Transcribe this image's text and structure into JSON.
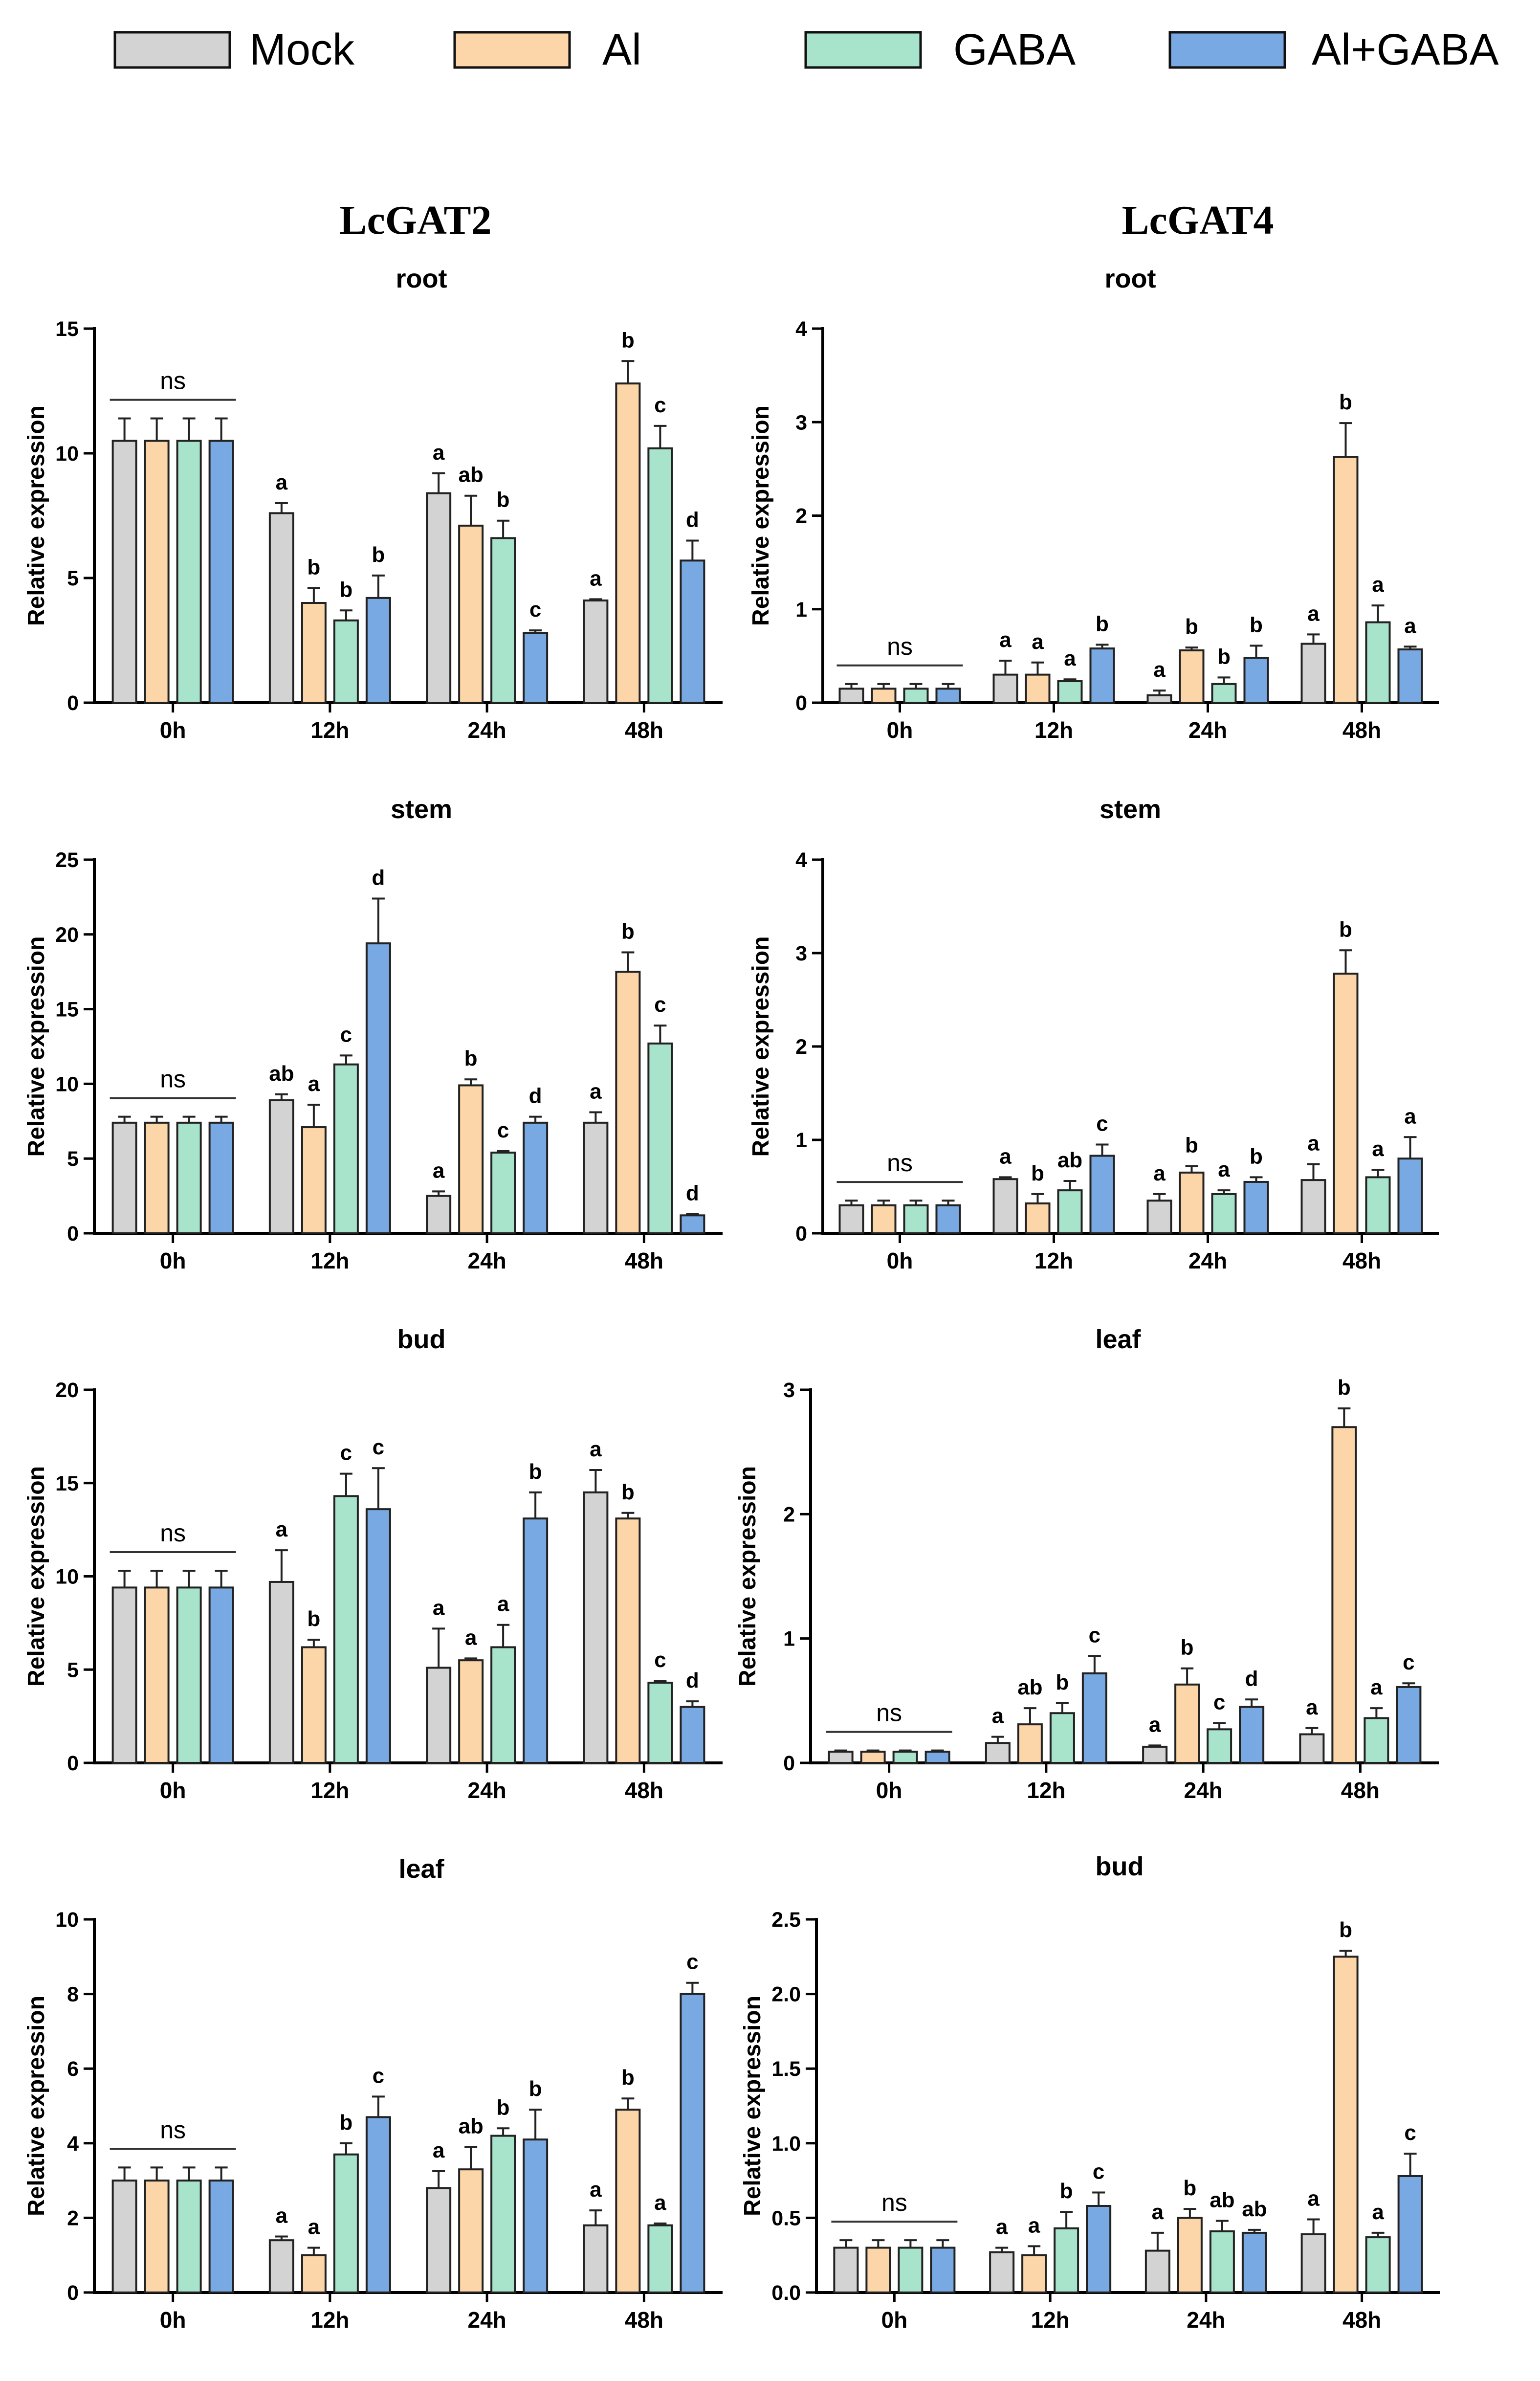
{
  "legend": {
    "items": [
      {
        "label": "Mock",
        "color": "#d3d3d3"
      },
      {
        "label": "Al",
        "color": "#fcd5a8"
      },
      {
        "label": "GABA",
        "color": "#a8e4cc"
      },
      {
        "label": "Al+GABA",
        "color": "#79a9e2"
      }
    ]
  },
  "columns": [
    {
      "title": "LcGAT2"
    },
    {
      "title": "LcGAT4"
    }
  ],
  "chart_data": [
    {
      "type": "bar",
      "gene": "LcGAT2",
      "title": "root",
      "ylabel": "Relative expression",
      "xlabel": "",
      "categories": [
        "0h",
        "12h",
        "24h",
        "48h"
      ],
      "ylim": [
        0,
        15
      ],
      "yticks": [
        "0",
        "5",
        "10",
        "15"
      ],
      "series": [
        {
          "name": "Mock",
          "values": [
            10.5,
            7.6,
            8.4,
            4.1
          ],
          "errors": [
            0.9,
            0.4,
            0.8,
            0.05
          ]
        },
        {
          "name": "Al",
          "values": [
            10.5,
            4.0,
            7.1,
            12.8
          ],
          "errors": [
            0.9,
            0.6,
            1.2,
            0.9
          ]
        },
        {
          "name": "GABA",
          "values": [
            10.5,
            3.3,
            6.6,
            10.2
          ],
          "errors": [
            0.9,
            0.4,
            0.7,
            0.9
          ]
        },
        {
          "name": "Al+GABA",
          "values": [
            10.5,
            4.2,
            2.8,
            5.7
          ],
          "errors": [
            0.9,
            0.9,
            0.1,
            0.8
          ]
        }
      ],
      "labels": [
        [
          "",
          "",
          "",
          ""
        ],
        [
          "a",
          "b",
          "b",
          "b"
        ],
        [
          "a",
          "ab",
          "b",
          "c"
        ],
        [
          "a",
          "b",
          "c",
          "d"
        ]
      ],
      "ns": "ns"
    },
    {
      "type": "bar",
      "gene": "LcGAT4",
      "title": "root",
      "ylabel": "Relative expression",
      "xlabel": "",
      "categories": [
        "0h",
        "12h",
        "24h",
        "48h"
      ],
      "ylim": [
        0,
        4
      ],
      "yticks": [
        "0",
        "1",
        "2",
        "3",
        "4"
      ],
      "series": [
        {
          "name": "Mock",
          "values": [
            0.15,
            0.3,
            0.08,
            0.63
          ],
          "errors": [
            0.05,
            0.15,
            0.05,
            0.1
          ]
        },
        {
          "name": "Al",
          "values": [
            0.15,
            0.3,
            0.56,
            2.63
          ],
          "errors": [
            0.05,
            0.13,
            0.03,
            0.36
          ]
        },
        {
          "name": "GABA",
          "values": [
            0.15,
            0.23,
            0.2,
            0.86
          ],
          "errors": [
            0.05,
            0.02,
            0.07,
            0.18
          ]
        },
        {
          "name": "Al+GABA",
          "values": [
            0.15,
            0.58,
            0.48,
            0.57
          ],
          "errors": [
            0.05,
            0.04,
            0.13,
            0.03
          ]
        }
      ],
      "labels": [
        [
          "",
          "",
          "",
          ""
        ],
        [
          "a",
          "a",
          "a",
          "b"
        ],
        [
          "a",
          "b",
          "b",
          "b"
        ],
        [
          "a",
          "b",
          "a",
          "a"
        ]
      ],
      "ns": "ns"
    },
    {
      "type": "bar",
      "gene": "LcGAT2",
      "title": "stem",
      "ylabel": "Relative expression",
      "xlabel": "",
      "categories": [
        "0h",
        "12h",
        "24h",
        "48h"
      ],
      "ylim": [
        0,
        25
      ],
      "yticks": [
        "0",
        "5",
        "10",
        "15",
        "20",
        "25"
      ],
      "series": [
        {
          "name": "Mock",
          "values": [
            7.4,
            8.9,
            2.5,
            7.4
          ],
          "errors": [
            0.4,
            0.4,
            0.3,
            0.7
          ]
        },
        {
          "name": "Al",
          "values": [
            7.4,
            7.1,
            9.9,
            17.5
          ],
          "errors": [
            0.4,
            1.5,
            0.4,
            1.3
          ]
        },
        {
          "name": "GABA",
          "values": [
            7.4,
            11.3,
            5.4,
            12.7
          ],
          "errors": [
            0.4,
            0.6,
            0.1,
            1.2
          ]
        },
        {
          "name": "Al+GABA",
          "values": [
            7.4,
            19.4,
            7.4,
            1.2
          ],
          "errors": [
            0.4,
            3.0,
            0.4,
            0.1
          ]
        }
      ],
      "labels": [
        [
          "",
          "",
          "",
          ""
        ],
        [
          "ab",
          "a",
          "c",
          "d"
        ],
        [
          "a",
          "b",
          "c",
          "d"
        ],
        [
          "a",
          "b",
          "c",
          "d"
        ]
      ],
      "ns": "ns"
    },
    {
      "type": "bar",
      "gene": "LcGAT4",
      "title": "stem",
      "ylabel": "Relative expression",
      "xlabel": "",
      "categories": [
        "0h",
        "12h",
        "24h",
        "48h"
      ],
      "ylim": [
        0,
        4
      ],
      "yticks": [
        "0",
        "1",
        "2",
        "3",
        "4"
      ],
      "series": [
        {
          "name": "Mock",
          "values": [
            0.3,
            0.58,
            0.35,
            0.57
          ],
          "errors": [
            0.05,
            0.02,
            0.07,
            0.17
          ]
        },
        {
          "name": "Al",
          "values": [
            0.3,
            0.32,
            0.65,
            2.78
          ],
          "errors": [
            0.05,
            0.1,
            0.07,
            0.25
          ]
        },
        {
          "name": "GABA",
          "values": [
            0.3,
            0.46,
            0.42,
            0.6
          ],
          "errors": [
            0.05,
            0.1,
            0.04,
            0.08
          ]
        },
        {
          "name": "Al+GABA",
          "values": [
            0.3,
            0.83,
            0.55,
            0.8
          ],
          "errors": [
            0.05,
            0.12,
            0.05,
            0.23
          ]
        }
      ],
      "labels": [
        [
          "",
          "",
          "",
          ""
        ],
        [
          "a",
          "b",
          "ab",
          "c"
        ],
        [
          "a",
          "b",
          "a",
          "b"
        ],
        [
          "a",
          "b",
          "a",
          "a"
        ]
      ],
      "ns": "ns"
    },
    {
      "type": "bar",
      "gene": "LcGAT2",
      "title": "bud",
      "ylabel": "Relative expression",
      "xlabel": "",
      "categories": [
        "0h",
        "12h",
        "24h",
        "48h"
      ],
      "ylim": [
        0,
        20
      ],
      "yticks": [
        "0",
        "5",
        "10",
        "15",
        "20"
      ],
      "series": [
        {
          "name": "Mock",
          "values": [
            9.4,
            9.7,
            5.1,
            14.5
          ],
          "errors": [
            0.9,
            1.7,
            2.1,
            1.2
          ]
        },
        {
          "name": "Al",
          "values": [
            9.4,
            6.2,
            5.5,
            13.1
          ],
          "errors": [
            0.9,
            0.4,
            0.1,
            0.3
          ]
        },
        {
          "name": "GABA",
          "values": [
            9.4,
            14.3,
            6.2,
            4.3
          ],
          "errors": [
            0.9,
            1.2,
            1.2,
            0.1
          ]
        },
        {
          "name": "Al+GABA",
          "values": [
            9.4,
            13.6,
            13.1,
            3.0
          ],
          "errors": [
            0.9,
            2.2,
            1.4,
            0.3
          ]
        }
      ],
      "labels": [
        [
          "",
          "",
          "",
          ""
        ],
        [
          "a",
          "b",
          "c",
          "c"
        ],
        [
          "a",
          "a",
          "a",
          "b"
        ],
        [
          "a",
          "b",
          "c",
          "d"
        ]
      ],
      "ns": "ns"
    },
    {
      "type": "bar",
      "gene": "LcGAT4",
      "title": "leaf",
      "ylabel": "Relative expression",
      "xlabel": "",
      "categories": [
        "0h",
        "12h",
        "24h",
        "48h"
      ],
      "ylim": [
        0,
        3
      ],
      "yticks": [
        "0",
        "1",
        "2",
        "3"
      ],
      "series": [
        {
          "name": "Mock",
          "values": [
            0.09,
            0.16,
            0.13,
            0.23
          ],
          "errors": [
            0.01,
            0.05,
            0.01,
            0.05
          ]
        },
        {
          "name": "Al",
          "values": [
            0.09,
            0.31,
            0.63,
            2.7
          ],
          "errors": [
            0.01,
            0.13,
            0.13,
            0.15
          ]
        },
        {
          "name": "GABA",
          "values": [
            0.09,
            0.4,
            0.27,
            0.36
          ],
          "errors": [
            0.01,
            0.08,
            0.05,
            0.08
          ]
        },
        {
          "name": "Al+GABA",
          "values": [
            0.09,
            0.72,
            0.45,
            0.61
          ],
          "errors": [
            0.01,
            0.14,
            0.06,
            0.03
          ]
        }
      ],
      "labels": [
        [
          "",
          "",
          "",
          ""
        ],
        [
          "a",
          "ab",
          "b",
          "c"
        ],
        [
          "a",
          "b",
          "c",
          "d"
        ],
        [
          "a",
          "b",
          "a",
          "c"
        ]
      ],
      "ns": "ns"
    },
    {
      "type": "bar",
      "gene": "LcGAT2",
      "title": "leaf",
      "ylabel": "Relative expression",
      "xlabel": "",
      "categories": [
        "0h",
        "12h",
        "24h",
        "48h"
      ],
      "ylim": [
        0,
        10
      ],
      "yticks": [
        "0",
        "2",
        "4",
        "6",
        "8",
        "10"
      ],
      "series": [
        {
          "name": "Mock",
          "values": [
            3.0,
            1.4,
            2.8,
            1.8
          ],
          "errors": [
            0.35,
            0.1,
            0.45,
            0.4
          ]
        },
        {
          "name": "Al",
          "values": [
            3.0,
            1.0,
            3.3,
            4.9
          ],
          "errors": [
            0.35,
            0.2,
            0.6,
            0.3
          ]
        },
        {
          "name": "GABA",
          "values": [
            3.0,
            3.7,
            4.2,
            1.8
          ],
          "errors": [
            0.35,
            0.3,
            0.2,
            0.05
          ]
        },
        {
          "name": "Al+GABA",
          "values": [
            3.0,
            4.7,
            4.1,
            8.0
          ],
          "errors": [
            0.35,
            0.55,
            0.8,
            0.3
          ]
        }
      ],
      "labels": [
        [
          "",
          "",
          "",
          ""
        ],
        [
          "a",
          "a",
          "b",
          "c"
        ],
        [
          "a",
          "ab",
          "b",
          "b"
        ],
        [
          "a",
          "b",
          "a",
          "c"
        ]
      ],
      "ns": "ns"
    },
    {
      "type": "bar",
      "gene": "LcGAT4",
      "title": "bud",
      "ylabel": "Relative expression",
      "xlabel": "",
      "categories": [
        "0h",
        "12h",
        "24h",
        "48h"
      ],
      "ylim": [
        0,
        2.5
      ],
      "yticks": [
        "0.0",
        "0.5",
        "1.0",
        "1.5",
        "2.0",
        "2.5"
      ],
      "series": [
        {
          "name": "Mock",
          "values": [
            0.3,
            0.27,
            0.28,
            0.39
          ],
          "errors": [
            0.05,
            0.03,
            0.12,
            0.1
          ]
        },
        {
          "name": "Al",
          "values": [
            0.3,
            0.25,
            0.5,
            2.25
          ],
          "errors": [
            0.05,
            0.06,
            0.06,
            0.04
          ]
        },
        {
          "name": "GABA",
          "values": [
            0.3,
            0.43,
            0.41,
            0.37
          ],
          "errors": [
            0.05,
            0.11,
            0.07,
            0.03
          ]
        },
        {
          "name": "Al+GABA",
          "values": [
            0.3,
            0.58,
            0.4,
            0.78
          ],
          "errors": [
            0.05,
            0.09,
            0.02,
            0.15
          ]
        }
      ],
      "labels": [
        [
          "",
          "",
          "",
          ""
        ],
        [
          "a",
          "a",
          "b",
          "c"
        ],
        [
          "a",
          "b",
          "ab",
          "ab"
        ],
        [
          "a",
          "b",
          "a",
          "c"
        ]
      ],
      "ns": "ns"
    }
  ]
}
